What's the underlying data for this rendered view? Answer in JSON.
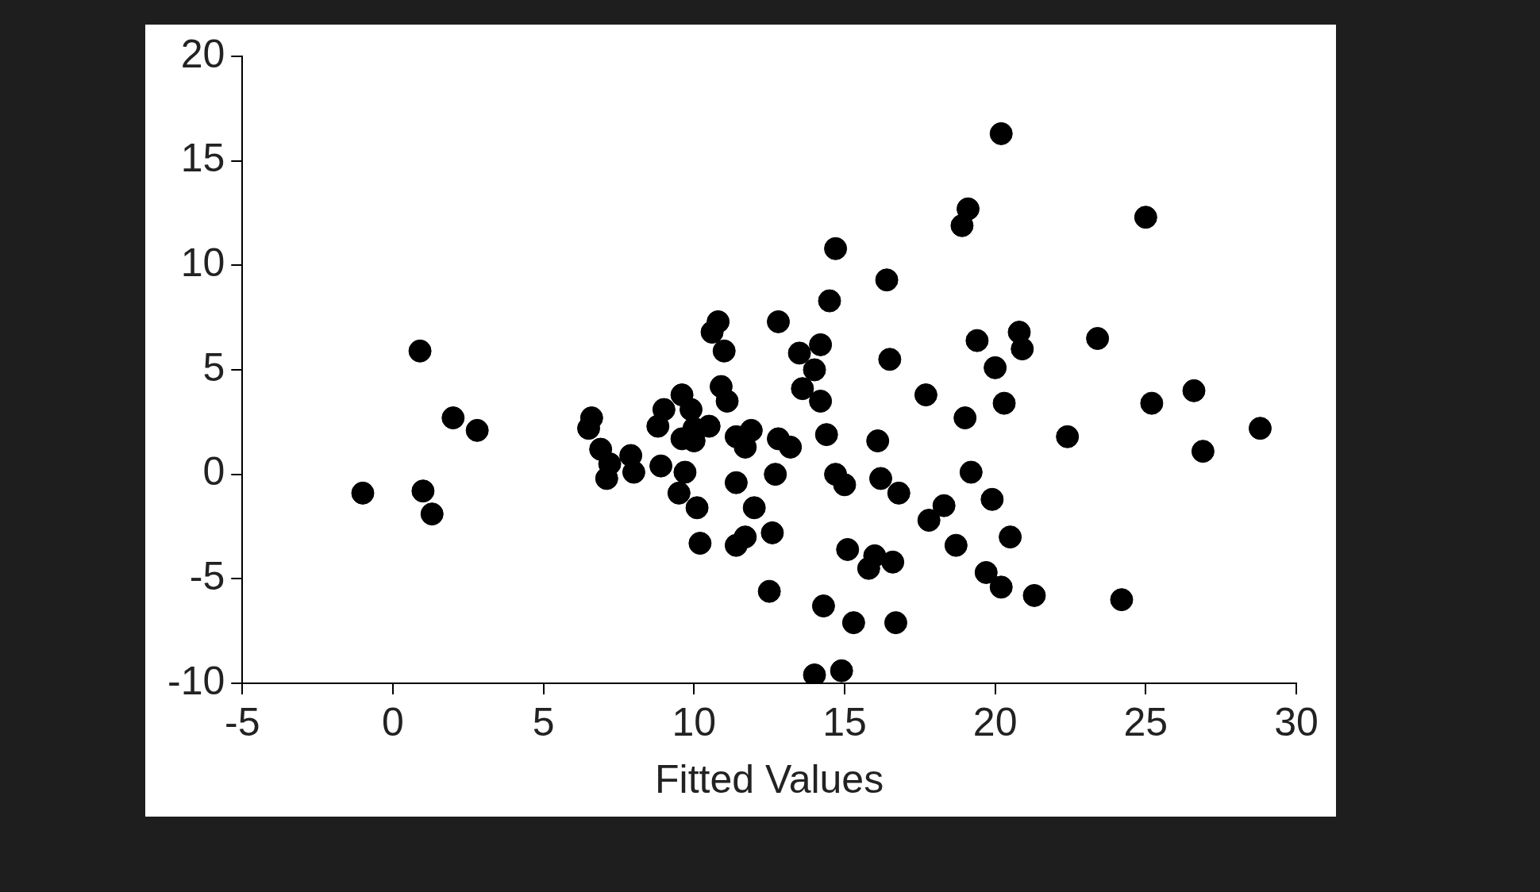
{
  "chart_data": {
    "type": "scatter",
    "xlabel": "Fitted Values",
    "marker": "circle",
    "grid": false,
    "legend": false,
    "xlim": [
      -5,
      30
    ],
    "xticks": [
      -5,
      0,
      5,
      10,
      15,
      20,
      25,
      30
    ],
    "ylim": [
      -10,
      20
    ],
    "yticks": [
      -10,
      -5,
      0,
      5,
      10,
      15,
      20
    ],
    "series": [
      {
        "color": "#000000",
        "x": [
          -1.0,
          0.9,
          1.0,
          1.3,
          2.0,
          2.8,
          6.5,
          6.6,
          6.9,
          7.2,
          7.1,
          7.9,
          8.0,
          8.8,
          9.0,
          8.9,
          9.6,
          9.6,
          9.7,
          9.5,
          9.9,
          10.0,
          10.0,
          10.1,
          10.2,
          10.5,
          10.6,
          10.8,
          11.0,
          10.9,
          11.1,
          11.4,
          11.4,
          11.4,
          11.7,
          11.7,
          11.9,
          12.0,
          12.5,
          12.6,
          12.7,
          12.8,
          12.8,
          13.2,
          13.5,
          13.6,
          14.0,
          14.0,
          14.2,
          14.2,
          14.3,
          14.4,
          14.5,
          14.7,
          14.7,
          14.9,
          15.0,
          15.1,
          15.3,
          15.8,
          16.0,
          16.1,
          16.2,
          16.4,
          16.5,
          16.6,
          16.7,
          16.8,
          17.7,
          17.8,
          18.3,
          18.7,
          18.9,
          19.0,
          19.1,
          19.2,
          19.4,
          19.7,
          19.9,
          20.0,
          20.2,
          20.2,
          20.3,
          20.5,
          20.8,
          20.9,
          21.3,
          22.4,
          23.4,
          24.2,
          25.0,
          25.2,
          26.6,
          26.9,
          28.8
        ],
        "values": [
          -0.9,
          5.9,
          -0.8,
          -1.9,
          2.7,
          2.1,
          2.2,
          2.7,
          1.2,
          0.5,
          -0.2,
          0.9,
          0.1,
          2.3,
          3.1,
          0.4,
          3.8,
          1.7,
          0.1,
          -0.9,
          3.1,
          2.2,
          1.6,
          -1.6,
          -3.3,
          2.3,
          6.8,
          7.3,
          5.9,
          4.2,
          3.5,
          1.8,
          -0.4,
          -3.4,
          -3.0,
          1.3,
          2.1,
          -1.6,
          -5.6,
          -2.8,
          0.0,
          1.7,
          7.3,
          1.3,
          5.8,
          4.1,
          5.0,
          -9.6,
          6.2,
          3.5,
          -6.3,
          1.9,
          8.3,
          10.8,
          0.0,
          -9.4,
          -0.5,
          -3.6,
          -7.1,
          -4.5,
          -3.9,
          1.6,
          -0.2,
          9.3,
          5.5,
          -4.2,
          -7.1,
          -0.9,
          3.8,
          -2.2,
          -1.5,
          -3.4,
          11.9,
          2.7,
          12.7,
          0.1,
          6.4,
          -4.7,
          -1.2,
          5.1,
          16.3,
          -5.4,
          3.4,
          -3.0,
          6.8,
          6.0,
          -5.8,
          1.8,
          6.5,
          -6.0,
          12.3,
          3.4,
          4.0,
          1.1,
          2.2
        ]
      }
    ]
  }
}
